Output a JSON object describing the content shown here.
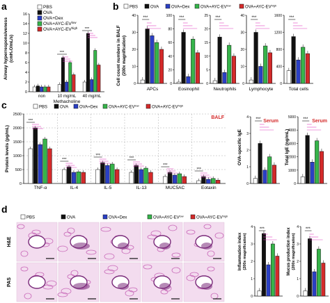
{
  "colors": {
    "pbs": "#ffffff",
    "ova": "#111111",
    "dex": "#2a3fc4",
    "ayc_low": "#36b44a",
    "ayc_high": "#d42a2a",
    "sig": "#e040c0",
    "histo_bg": "#f3dcef",
    "histo_tissue": "#c868b8",
    "histo_dark": "#7a2a7a"
  },
  "panels": {
    "a": {
      "letter": "a",
      "legend": [
        "PBS",
        "OVA",
        "OVA+Dex",
        "OVA+AYC-EV",
        "OVA+AYC-EV"
      ],
      "legend_sup": [
        "",
        "",
        "",
        "low",
        "high"
      ],
      "ylabel_lines": [
        "Airway hyperresponsiveness",
        "(cmH₂O/mL/s)"
      ],
      "yticks": [
        "0",
        "2",
        "4",
        "6",
        "8",
        "10",
        "12",
        "14",
        "16"
      ],
      "xgroups": [
        "non",
        "10 mg/mL",
        "40 mg/mL"
      ],
      "xtitle": "Methacholine",
      "stars": "***"
    },
    "b": {
      "letter": "b",
      "legend": [
        "PBS",
        "OVA",
        "OVA+Dex",
        "OVA+AYC-EV",
        "OVA+AYC-EV"
      ],
      "legend_sup": [
        "",
        "",
        "",
        "low",
        "high"
      ],
      "ylabel_lines": [
        "Cell count numbers in BALF",
        "(200x magnification)"
      ],
      "xlabels": [
        "APCs",
        "Eosinophil",
        "Neutrophils",
        "Lymphocyte",
        "Total cells"
      ],
      "yticks": [
        [
          "0",
          "10",
          "20",
          "30",
          "40"
        ],
        [
          "0",
          "20",
          "40",
          "60",
          "80",
          "100"
        ],
        [
          "0",
          "5",
          "10",
          "15",
          "20",
          "25"
        ],
        [
          "0",
          "10",
          "20",
          "30",
          "40"
        ],
        [
          "0",
          "400",
          "800",
          "1200",
          "1600"
        ]
      ],
      "stars": "***"
    },
    "c": {
      "letter": "c",
      "legend": [
        "PBS",
        "OVA",
        "OVA+Dex",
        "OVA+AYC-EV",
        "OVA+AYC-EV"
      ],
      "legend_sup": [
        "",
        "",
        "",
        "low",
        "high"
      ],
      "balf_tag": "BALF",
      "ylabel": "Protein levels (pg/mL)",
      "yticks": [
        "0",
        "500",
        "1000",
        "1500",
        "2000",
        "2500"
      ],
      "xlabels": [
        "TNF-α",
        "IL-4",
        "IL-5",
        "IL-13",
        "MUC5AC",
        "Eotaxin"
      ],
      "serum_tag": "Serum",
      "ova_ige_ylabel": "OVA-specific IgE",
      "ova_ige_yticks": [
        "0",
        "1",
        "2",
        "3",
        "4"
      ],
      "total_ige_ylabel": "Total IgE (ng/mL)",
      "total_ige_yticks": [
        "0",
        "1000",
        "2000",
        "3000",
        "4000",
        "5000"
      ],
      "stars": "***"
    },
    "d": {
      "letter": "d",
      "legend": [
        "PBS",
        "OVA",
        "OVA+Dex",
        "OVA+AYC-EV",
        "OVA+AYC-EV"
      ],
      "legend_sup": [
        "",
        "",
        "",
        "low",
        "high"
      ],
      "row_labels": [
        "H&E",
        "PAS"
      ],
      "inflam_ylabel_lines": [
        "Inflammation index",
        "(200x magnification)"
      ],
      "mucus_ylabel_lines": [
        "Mucus production index",
        "(200x magnification)"
      ],
      "inflam_yticks": [
        "0",
        "1",
        "2",
        "3",
        "4"
      ],
      "mucus_yticks": [
        "0",
        "1",
        "2",
        "3",
        "4"
      ],
      "stars": "***"
    }
  },
  "chart_data": [
    {
      "type": "bar",
      "panel": "a",
      "categories": [
        "non",
        "10 mg/mL",
        "40 mg/mL"
      ],
      "ylim": [
        0,
        16
      ],
      "xlabel": "Methacholine",
      "ylabel": "Airway hyperresponsiveness (cmH₂O/mL/s)",
      "series": [
        {
          "name": "PBS",
          "values": [
            1.0,
            1.5,
            2.0
          ]
        },
        {
          "name": "OVA",
          "values": [
            1.2,
            7.0,
            12.0
          ]
        },
        {
          "name": "OVA+Dex",
          "values": [
            1.0,
            2.0,
            2.5
          ]
        },
        {
          "name": "OVA+AYC-EV low",
          "values": [
            1.0,
            6.0,
            8.5
          ]
        },
        {
          "name": "OVA+AYC-EV high",
          "values": [
            1.0,
            3.5,
            5.5
          ]
        }
      ]
    },
    {
      "type": "bar",
      "panel": "b",
      "chart": "APCs",
      "ylim": [
        0,
        40
      ],
      "series_values": [
        2,
        32,
        28,
        24,
        20
      ]
    },
    {
      "type": "bar",
      "panel": "b",
      "chart": "Eosinophil",
      "ylim": [
        0,
        100
      ],
      "series_values": [
        2,
        75,
        10,
        65,
        45
      ]
    },
    {
      "type": "bar",
      "panel": "b",
      "chart": "Neutrophils",
      "ylim": [
        0,
        25
      ],
      "series_values": [
        1,
        17,
        4,
        14,
        10
      ]
    },
    {
      "type": "bar",
      "panel": "b",
      "chart": "Lymphocyte",
      "ylim": [
        0,
        40
      ],
      "series_values": [
        2,
        30,
        10,
        22,
        18
      ]
    },
    {
      "type": "bar",
      "panel": "b",
      "chart": "Total cells",
      "ylim": [
        0,
        1600
      ],
      "series_values": [
        300,
        1100,
        550,
        850,
        700
      ]
    },
    {
      "type": "bar",
      "panel": "c",
      "categories": [
        "TNF-α",
        "IL-4",
        "IL-5",
        "IL-13",
        "MUC5AC",
        "Eotaxin"
      ],
      "ylim": [
        0,
        2500
      ],
      "ylabel": "Protein levels (pg/mL)",
      "series": [
        {
          "name": "PBS",
          "values": [
            1250,
            500,
            500,
            400,
            250,
            100
          ]
        },
        {
          "name": "OVA",
          "values": [
            2000,
            600,
            750,
            650,
            400,
            250
          ]
        },
        {
          "name": "OVA+Dex",
          "values": [
            1400,
            400,
            650,
            500,
            300,
            150
          ]
        },
        {
          "name": "OVA+AYC-EV low",
          "values": [
            1600,
            420,
            700,
            550,
            350,
            180
          ]
        },
        {
          "name": "OVA+AYC-EV high",
          "values": [
            1250,
            400,
            500,
            400,
            250,
            120
          ]
        }
      ]
    },
    {
      "type": "bar",
      "panel": "c",
      "chart": "OVA-specific IgE",
      "ylim": [
        0,
        4
      ],
      "series_values": [
        0.3,
        2.4,
        0.8,
        1.6,
        1.1
      ]
    },
    {
      "type": "bar",
      "panel": "c",
      "chart": "Total IgE (ng/mL)",
      "ylim": [
        0,
        5000
      ],
      "series_values": [
        500,
        3600,
        1600,
        3200,
        2400
      ]
    },
    {
      "type": "bar",
      "panel": "d",
      "chart": "Inflammation index",
      "ylim": [
        0,
        4
      ],
      "series_values": [
        0.3,
        3.6,
        1.8,
        3.0,
        2.3
      ]
    },
    {
      "type": "bar",
      "panel": "d",
      "chart": "Mucus production index",
      "ylim": [
        0,
        4
      ],
      "series_values": [
        0.3,
        3.3,
        1.4,
        2.7,
        1.9
      ]
    }
  ]
}
